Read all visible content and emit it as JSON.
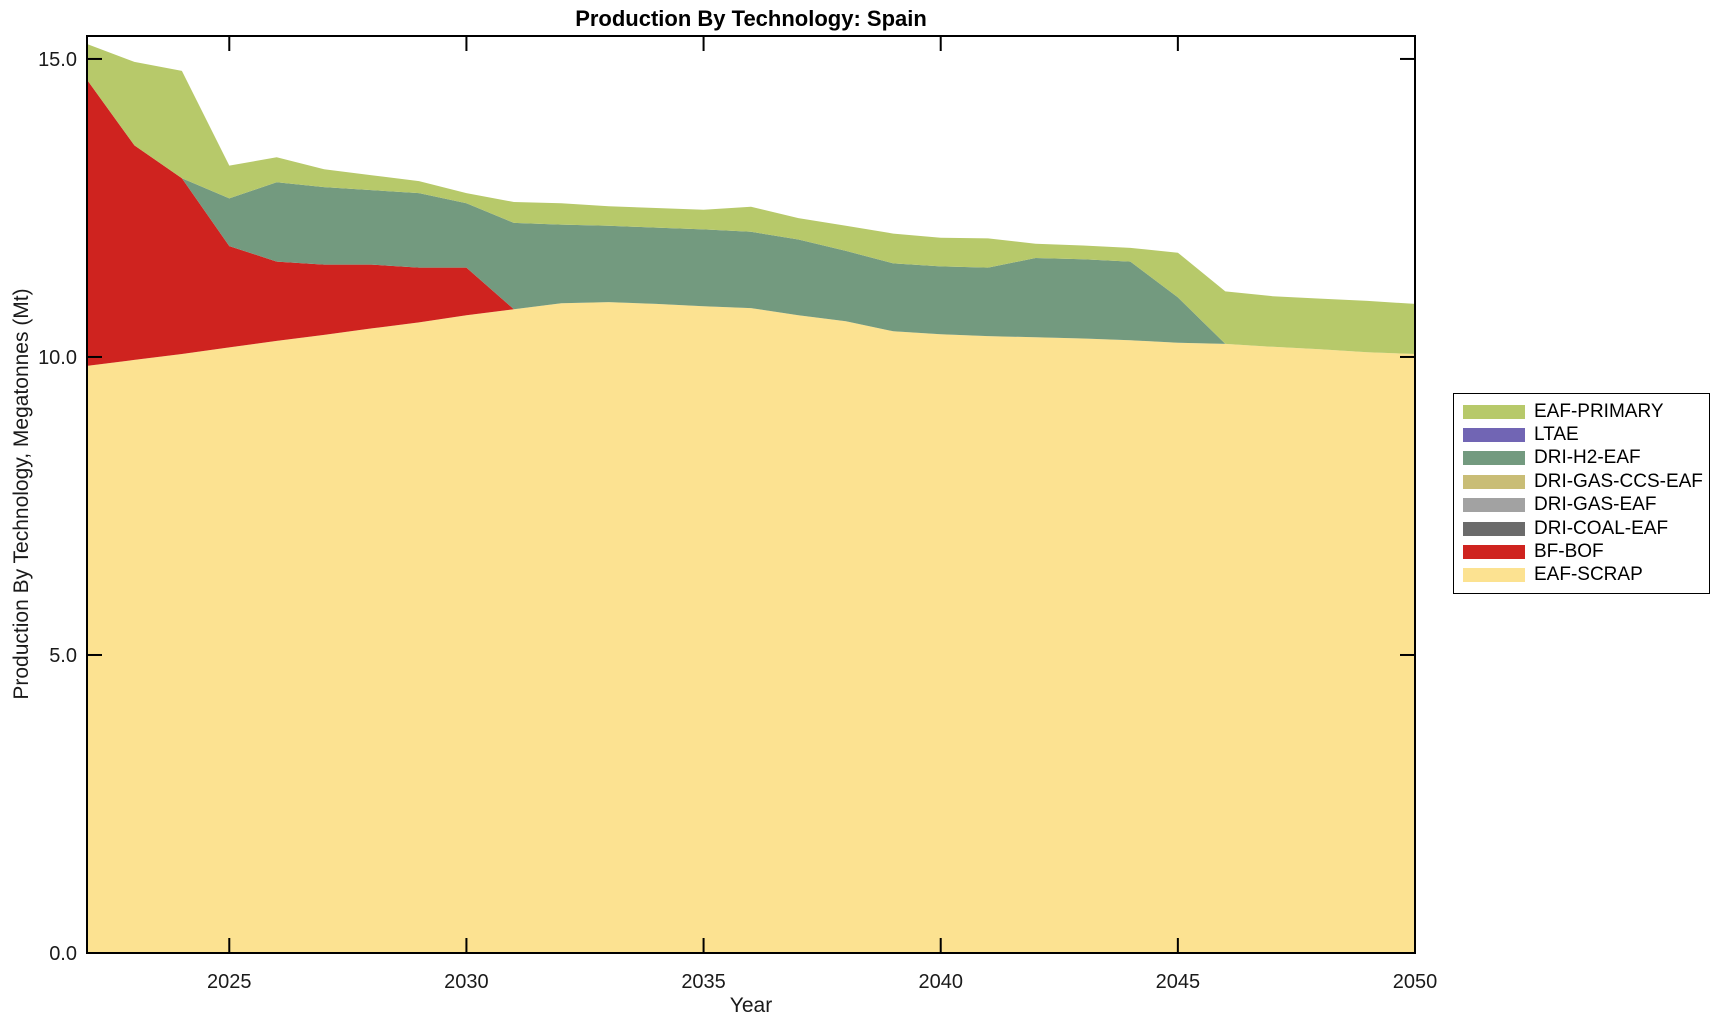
{
  "title": "Production By Technology: Spain",
  "axes": {
    "xlabel": "Year",
    "ylabel": "Production By Technology, Megatonnes (Mt)",
    "x_range": [
      2022,
      2050
    ],
    "y_range": [
      0,
      15.385
    ],
    "x_ticks": [
      {
        "v": 2025,
        "label": "2025"
      },
      {
        "v": 2030,
        "label": "2030"
      },
      {
        "v": 2035,
        "label": "2035"
      },
      {
        "v": 2040,
        "label": "2040"
      },
      {
        "v": 2045,
        "label": "2045"
      },
      {
        "v": 2050,
        "label": "2050"
      }
    ],
    "y_ticks": [
      {
        "v": 0,
        "label": "0.0"
      },
      {
        "v": 5,
        "label": "5.0"
      },
      {
        "v": 10,
        "label": "10.0"
      },
      {
        "v": 15,
        "label": "15.0"
      }
    ]
  },
  "legend": {
    "items": [
      {
        "label": "EAF-PRIMARY",
        "color": "#b7c96a"
      },
      {
        "label": "LTAE",
        "color": "#7165b4"
      },
      {
        "label": "DRI-H2-EAF",
        "color": "#739a7f"
      },
      {
        "label": "DRI-GAS-CCS-EAF",
        "color": "#c9bd76"
      },
      {
        "label": "DRI-GAS-EAF",
        "color": "#a2a2a2"
      },
      {
        "label": "DRI-COAL-EAF",
        "color": "#6b6b6b"
      },
      {
        "label": "BF-BOF",
        "color": "#cf231f"
      },
      {
        "label": "EAF-SCRAP",
        "color": "#fce291"
      }
    ]
  },
  "chart_data": {
    "type": "area",
    "stacked": true,
    "title": "Production By Technology: Spain",
    "xlabel": "Year",
    "ylabel": "Production By Technology, Megatonnes (Mt)",
    "xlim": [
      2022,
      2050
    ],
    "ylim": [
      0,
      15.385
    ],
    "grid": false,
    "legend_position": "right",
    "x": [
      2022,
      2023,
      2024,
      2025,
      2026,
      2027,
      2028,
      2029,
      2030,
      2031,
      2032,
      2033,
      2034,
      2035,
      2036,
      2037,
      2038,
      2039,
      2040,
      2041,
      2042,
      2043,
      2044,
      2045,
      2046,
      2047,
      2048,
      2049,
      2050
    ],
    "series": [
      {
        "name": "EAF-SCRAP",
        "color": "#fce291",
        "values": [
          9.85,
          9.95,
          10.05,
          10.16,
          10.27,
          10.37,
          10.48,
          10.58,
          10.7,
          10.8,
          10.9,
          10.92,
          10.89,
          10.85,
          10.82,
          10.7,
          10.6,
          10.43,
          10.38,
          10.35,
          10.33,
          10.31,
          10.28,
          10.24,
          10.22,
          10.17,
          10.13,
          10.08,
          10.05
        ]
      },
      {
        "name": "BF-BOF",
        "color": "#cf231f",
        "values": [
          4.8,
          3.6,
          2.95,
          1.7,
          1.33,
          1.18,
          1.07,
          0.92,
          0.8,
          0,
          0,
          0,
          0,
          0,
          0,
          0,
          0,
          0,
          0,
          0,
          0,
          0,
          0,
          0,
          0,
          0,
          0,
          0,
          0
        ]
      },
      {
        "name": "DRI-COAL-EAF",
        "color": "#6b6b6b",
        "values": [
          0,
          0,
          0,
          0,
          0,
          0,
          0,
          0,
          0,
          0,
          0,
          0,
          0,
          0,
          0,
          0,
          0,
          0,
          0,
          0,
          0,
          0,
          0,
          0,
          0,
          0,
          0,
          0,
          0
        ]
      },
      {
        "name": "DRI-GAS-EAF",
        "color": "#a2a2a2",
        "values": [
          0,
          0,
          0,
          0,
          0,
          0,
          0,
          0,
          0,
          0,
          0,
          0,
          0,
          0,
          0,
          0,
          0,
          0,
          0,
          0,
          0,
          0,
          0,
          0,
          0,
          0,
          0,
          0,
          0
        ]
      },
      {
        "name": "DRI-GAS-CCS-EAF",
        "color": "#c9bd76",
        "values": [
          0,
          0,
          0,
          0,
          0,
          0,
          0,
          0,
          0,
          0,
          0,
          0,
          0,
          0,
          0,
          0,
          0,
          0,
          0,
          0,
          0,
          0,
          0,
          0,
          0,
          0,
          0,
          0,
          0
        ]
      },
      {
        "name": "DRI-H2-EAF",
        "color": "#739a7f",
        "values": [
          0,
          0,
          0,
          0.8,
          1.33,
          1.3,
          1.25,
          1.25,
          1.08,
          1.45,
          1.32,
          1.28,
          1.28,
          1.29,
          1.28,
          1.27,
          1.18,
          1.14,
          1.14,
          1.15,
          1.33,
          1.33,
          1.32,
          0.76,
          0,
          0,
          0,
          0,
          0
        ]
      },
      {
        "name": "LTAE",
        "color": "#7165b4",
        "values": [
          0,
          0,
          0,
          0,
          0,
          0,
          0,
          0,
          0,
          0,
          0,
          0,
          0,
          0,
          0,
          0,
          0,
          0,
          0,
          0,
          0,
          0,
          0,
          0,
          0,
          0,
          0,
          0,
          0
        ]
      },
      {
        "name": "EAF-PRIMARY",
        "color": "#b7c96a",
        "values": [
          0.6,
          1.4,
          1.8,
          0.55,
          0.42,
          0.3,
          0.25,
          0.2,
          0.17,
          0.35,
          0.36,
          0.33,
          0.33,
          0.33,
          0.42,
          0.36,
          0.42,
          0.5,
          0.48,
          0.49,
          0.24,
          0.23,
          0.23,
          0.75,
          0.88,
          0.85,
          0.85,
          0.86,
          0.84
        ]
      }
    ]
  }
}
